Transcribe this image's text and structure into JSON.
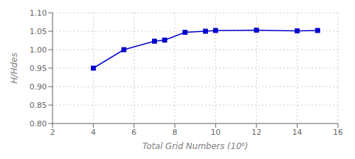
{
  "chart_data": {
    "type": "line",
    "x": [
      4,
      5.5,
      7,
      7.5,
      8.5,
      9.5,
      10,
      12,
      14,
      15
    ],
    "values": [
      0.95,
      1.0,
      1.023,
      1.026,
      1.047,
      1.05,
      1.052,
      1.053,
      1.051,
      1.052
    ],
    "xlabel": "Total Grid Numbers (10⁶)",
    "ylabel": "H/Hdes",
    "xlim": [
      2,
      16
    ],
    "ylim": [
      0.8,
      1.1
    ],
    "xticks": [
      2,
      4,
      6,
      8,
      10,
      12,
      14,
      16
    ],
    "yticks": [
      {
        "value": 0.8,
        "label": "0.80"
      },
      0.85,
      {
        "value": 0.9,
        "label": "0.90"
      },
      0.95,
      {
        "value": 1.0,
        "label": "1.00"
      },
      1.05,
      {
        "value": 1.1,
        "label": "1.10"
      }
    ],
    "color": "#0000cc",
    "marker": "square",
    "grid": true
  }
}
